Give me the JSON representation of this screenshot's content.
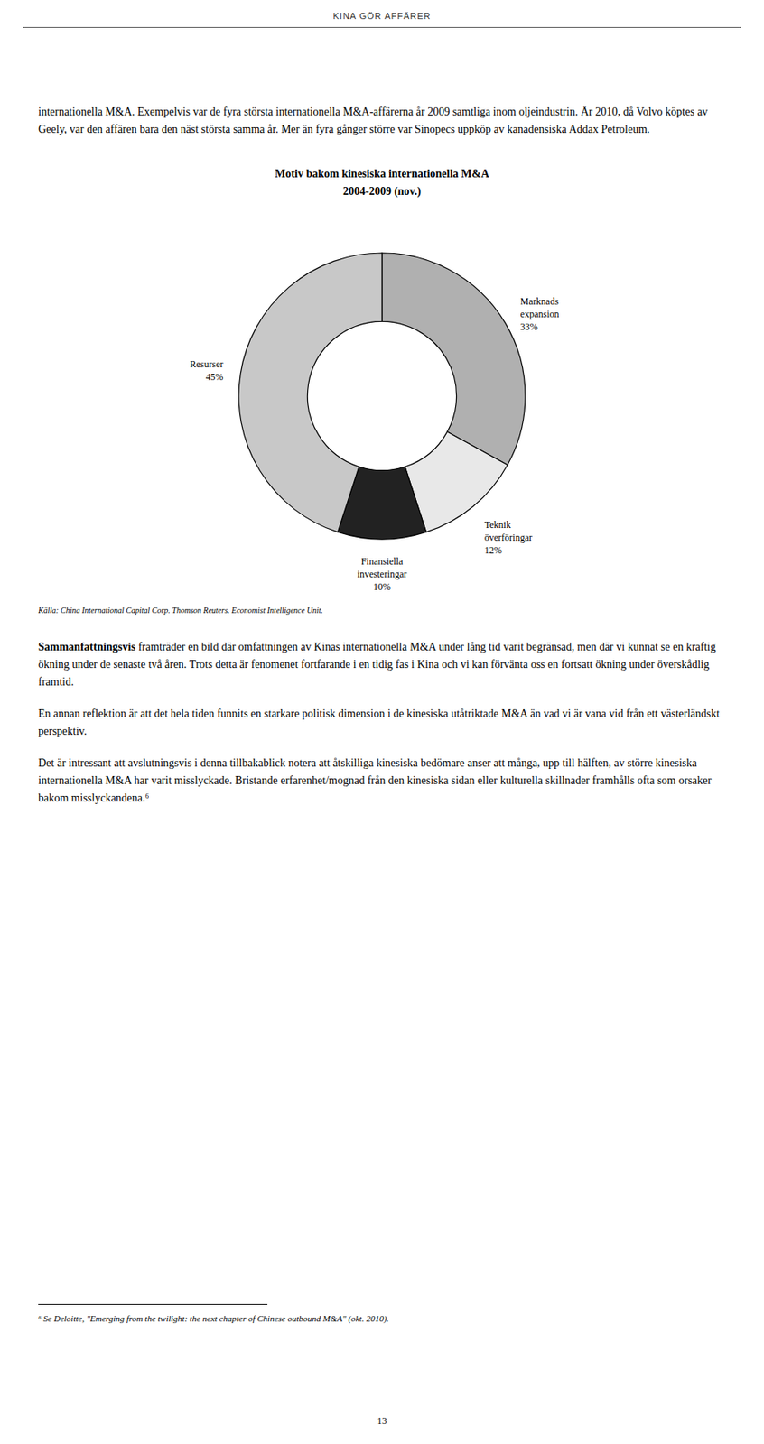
{
  "header": "KINA GÖR AFFÄRER",
  "paragraphs": [
    {
      "text": "internationella M&A. Exempelvis var de fyra största internationella M&A-affärerna år 2009 samtliga inom oljeindustrin. År 2010, då Volvo köptes av Geely, var den affären bara den näst största samma år. Mer än fyra gånger större var Sinopecs uppköp av kanadensiska Addax Petroleum."
    },
    {
      "lead": "Sammanfattningsvis",
      "text": "framträder en bild där omfattningen av Kinas internationella M&A under lång tid varit begränsad, men där vi kunnat se en kraftig ökning under de senaste två åren. Trots detta är fenomenet fortfarande i en tidig fas i Kina och vi kan förvänta oss en fortsatt ökning under överskådlig framtid."
    },
    {
      "text": "En annan reflektion är att det hela tiden funnits en starkare politisk dimension i de kinesiska utåtriktade M&A än vad vi är vana vid från ett västerländskt perspektiv."
    },
    {
      "text": "Det är intressant att avslutningsvis i denna tillbakablick notera att åtskilliga kinesiska bedömare anser att många, upp till hälften, av större kinesiska internationella M&A har varit misslyckade. Bristande erfarenhet/mognad från den kinesiska sidan eller kulturella skillnader framhålls ofta som orsaker bakom misslyckandena.⁶"
    }
  ],
  "footnote": "⁶ Se Deloitte, \"Emerging from the twilight: the next chapter of Chinese outbound M&A\" (okt. 2010).",
  "page_number": "13",
  "chart_data": {
    "type": "pie",
    "title": "Motiv bakom kinesiska internationella M&A",
    "subtitle": "2004-2009 (nov.)",
    "categories": [
      "Marknads\nexpansion",
      "Teknik\növerföringar",
      "Finansiella\ninvesteringar",
      "Resurser"
    ],
    "values": [
      33,
      12,
      10,
      45
    ],
    "value_labels": [
      "33%",
      "12%",
      "10%",
      "45%"
    ],
    "colors": [
      "#b0b0b0",
      "#e8e8e8",
      "#222222",
      "#c8c8c8"
    ],
    "data_labels": true,
    "source": "Källa: China International Capital Corp. Thomson Reuters. Economist Intelligence Unit."
  }
}
